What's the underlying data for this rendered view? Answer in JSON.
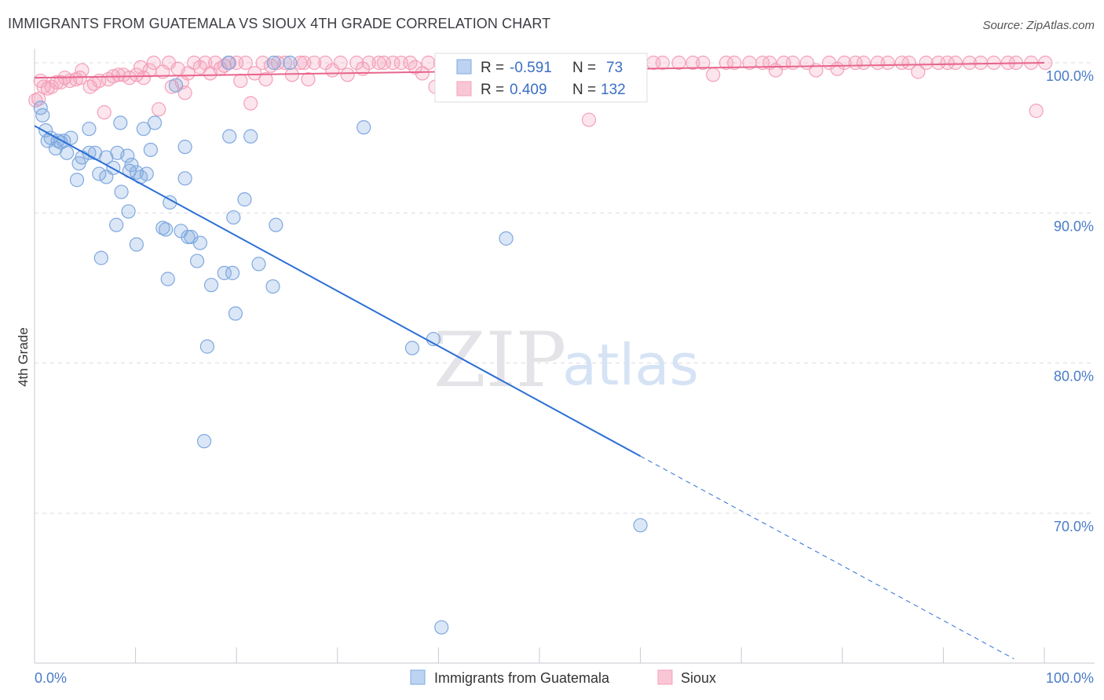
{
  "title": "IMMIGRANTS FROM GUATEMALA VS SIOUX 4TH GRADE CORRELATION CHART",
  "source": "Source: ZipAtlas.com",
  "watermark": {
    "zip": "ZIP",
    "atlas": "atlas"
  },
  "chart_data": {
    "type": "scatter",
    "xlabel": "",
    "ylabel": "4th Grade",
    "xlim": [
      0,
      100
    ],
    "ylim": [
      61,
      101
    ],
    "y_ticks": [
      {
        "v": 100,
        "label": "100.0%"
      },
      {
        "v": 90,
        "label": "90.0%"
      },
      {
        "v": 80,
        "label": "80.0%"
      },
      {
        "v": 70,
        "label": "70.0%"
      }
    ],
    "x_ticks": [
      {
        "v": 0,
        "label": "0.0%"
      },
      {
        "v": 100,
        "label": "100.0%"
      }
    ],
    "grid": true,
    "legend": {
      "placement": "top-center",
      "rows": [
        {
          "r_label": "R =",
          "r_value": "-0.591",
          "n_label": "N =",
          "n_value": "73"
        },
        {
          "r_label": "R =",
          "r_value": "0.409",
          "n_label": "N =",
          "n_value": "132"
        }
      ]
    },
    "series": [
      {
        "name": "Immigrants from Guatemala",
        "color": "#7fa8e0",
        "line_color": "#2b6fd6",
        "trend": {
          "x0": 0,
          "y0": 95.8,
          "x1": 60,
          "y1": 73.8,
          "dash_to_x": 97,
          "dash_to_y": 60.3
        },
        "points": [
          [
            0.6,
            97
          ],
          [
            0.8,
            96.5
          ],
          [
            1.1,
            95.5
          ],
          [
            1.3,
            94.8
          ],
          [
            1.6,
            95
          ],
          [
            2.1,
            94.3
          ],
          [
            2.3,
            94.8
          ],
          [
            2.6,
            94.7
          ],
          [
            2.9,
            94.8
          ],
          [
            3.2,
            94
          ],
          [
            3.6,
            95
          ],
          [
            4.2,
            92.2
          ],
          [
            4.4,
            93.3
          ],
          [
            4.7,
            93.7
          ],
          [
            5.4,
            94
          ],
          [
            5.4,
            95.6
          ],
          [
            6,
            94
          ],
          [
            6.4,
            92.6
          ],
          [
            6.6,
            87
          ],
          [
            7.1,
            93.7
          ],
          [
            7.1,
            92.4
          ],
          [
            7.8,
            93
          ],
          [
            8.1,
            89.2
          ],
          [
            8.2,
            94
          ],
          [
            8.5,
            96
          ],
          [
            8.6,
            91.4
          ],
          [
            9.2,
            93.8
          ],
          [
            9.3,
            90.1
          ],
          [
            9.4,
            92.8
          ],
          [
            9.6,
            93.2
          ],
          [
            10.1,
            92.7
          ],
          [
            10.1,
            87.9
          ],
          [
            10.5,
            92.4
          ],
          [
            10.8,
            95.6
          ],
          [
            11.1,
            92.6
          ],
          [
            11.5,
            94.2
          ],
          [
            11.9,
            96
          ],
          [
            12.7,
            89
          ],
          [
            13,
            88.9
          ],
          [
            13.2,
            85.6
          ],
          [
            13.4,
            90.7
          ],
          [
            14,
            98.5
          ],
          [
            14.5,
            88.8
          ],
          [
            14.9,
            94.4
          ],
          [
            14.9,
            92.3
          ],
          [
            15.2,
            88.4
          ],
          [
            15.5,
            88.4
          ],
          [
            16.1,
            86.8
          ],
          [
            16.4,
            88
          ],
          [
            16.8,
            74.8
          ],
          [
            17.1,
            81.1
          ],
          [
            17.5,
            85.2
          ],
          [
            18.8,
            86
          ],
          [
            19.3,
            95.1
          ],
          [
            19.2,
            100
          ],
          [
            19.6,
            86
          ],
          [
            19.7,
            89.7
          ],
          [
            19.9,
            83.3
          ],
          [
            20.8,
            90.9
          ],
          [
            21.4,
            95.1
          ],
          [
            22.2,
            86.6
          ],
          [
            23.6,
            85.1
          ],
          [
            23.7,
            100
          ],
          [
            23.9,
            89.2
          ],
          [
            25.3,
            100
          ],
          [
            32.6,
            95.7
          ],
          [
            37.4,
            81
          ],
          [
            39.5,
            81.6
          ],
          [
            40.3,
            62.4
          ],
          [
            41.7,
            100
          ],
          [
            44.4,
            100
          ],
          [
            46.7,
            88.3
          ],
          [
            60,
            69.2
          ]
        ]
      },
      {
        "name": "Sioux",
        "color": "#f4a0ba",
        "line_color": "#e8648c",
        "trend": {
          "x0": 0,
          "y0": 99.0,
          "x1": 100,
          "y1": 100.0
        },
        "points": [
          [
            0.1,
            97.5
          ],
          [
            0.4,
            97.6
          ],
          [
            0.6,
            98.8
          ],
          [
            0.9,
            98.4
          ],
          [
            1.3,
            98.3
          ],
          [
            1.7,
            98.4
          ],
          [
            2.2,
            98.7
          ],
          [
            2.6,
            98.7
          ],
          [
            3,
            99
          ],
          [
            3.5,
            98.8
          ],
          [
            4.1,
            98.9
          ],
          [
            4.5,
            99
          ],
          [
            4.7,
            99.5
          ],
          [
            5.5,
            98.4
          ],
          [
            5.9,
            98.6
          ],
          [
            6.4,
            98.8
          ],
          [
            6.9,
            96.7
          ],
          [
            7.3,
            98.9
          ],
          [
            7.8,
            99.1
          ],
          [
            8.3,
            99.2
          ],
          [
            8.8,
            99.2
          ],
          [
            9.4,
            99
          ],
          [
            10.1,
            99.2
          ],
          [
            10.5,
            99.7
          ],
          [
            10.8,
            99
          ],
          [
            11.4,
            99.5
          ],
          [
            11.8,
            100
          ],
          [
            12.3,
            96.9
          ],
          [
            12.7,
            99.4
          ],
          [
            13.3,
            100
          ],
          [
            13.6,
            98.4
          ],
          [
            14.2,
            99.6
          ],
          [
            14.6,
            98.7
          ],
          [
            14.9,
            98
          ],
          [
            15.2,
            99.3
          ],
          [
            15.8,
            100
          ],
          [
            16.4,
            99.7
          ],
          [
            16.9,
            100
          ],
          [
            17.4,
            99.3
          ],
          [
            17.9,
            100
          ],
          [
            18.4,
            99.6
          ],
          [
            18.8,
            99.8
          ],
          [
            19.3,
            100
          ],
          [
            20,
            100
          ],
          [
            20.4,
            98.8
          ],
          [
            20.9,
            100
          ],
          [
            21.4,
            97.3
          ],
          [
            21.8,
            99.3
          ],
          [
            22.6,
            100
          ],
          [
            22.9,
            98.9
          ],
          [
            23.4,
            99.8
          ],
          [
            24.1,
            100
          ],
          [
            24.8,
            100
          ],
          [
            25.5,
            99.2
          ],
          [
            26.3,
            100
          ],
          [
            26.7,
            100
          ],
          [
            27.1,
            98.9
          ],
          [
            27.7,
            100
          ],
          [
            28.8,
            100
          ],
          [
            29.5,
            99.5
          ],
          [
            30.3,
            100
          ],
          [
            31,
            99.2
          ],
          [
            31.9,
            100
          ],
          [
            32.5,
            99.6
          ],
          [
            33.1,
            100
          ],
          [
            34.1,
            100
          ],
          [
            34.6,
            100
          ],
          [
            35.5,
            100
          ],
          [
            36.3,
            100
          ],
          [
            37.2,
            100
          ],
          [
            37.7,
            99.7
          ],
          [
            38.4,
            99.3
          ],
          [
            39,
            100
          ],
          [
            39.7,
            98.4
          ],
          [
            40.2,
            100
          ],
          [
            41.1,
            100
          ],
          [
            41.8,
            100
          ],
          [
            42.7,
            100
          ],
          [
            43.4,
            100
          ],
          [
            44,
            99.3
          ],
          [
            44.7,
            100
          ],
          [
            45.4,
            100
          ],
          [
            46,
            100
          ],
          [
            46.5,
            100
          ],
          [
            47.5,
            100
          ],
          [
            48.4,
            100
          ],
          [
            50,
            100
          ],
          [
            50.5,
            100
          ],
          [
            51,
            100
          ],
          [
            51.7,
            100
          ],
          [
            54.9,
            96.2
          ],
          [
            56.1,
            100
          ],
          [
            58,
            100
          ],
          [
            60,
            100
          ],
          [
            61.3,
            100
          ],
          [
            62.2,
            100
          ],
          [
            63.8,
            100
          ],
          [
            65.2,
            100
          ],
          [
            66.2,
            100
          ],
          [
            67.2,
            99.2
          ],
          [
            68.5,
            100
          ],
          [
            69.3,
            100
          ],
          [
            70.8,
            100
          ],
          [
            72.1,
            100
          ],
          [
            72.8,
            100
          ],
          [
            73.4,
            99.5
          ],
          [
            74.2,
            100
          ],
          [
            75.1,
            100
          ],
          [
            76.5,
            100
          ],
          [
            77.4,
            99.5
          ],
          [
            78.7,
            100
          ],
          [
            79.5,
            99.6
          ],
          [
            80.2,
            100
          ],
          [
            81.3,
            100
          ],
          [
            82.1,
            100
          ],
          [
            83.5,
            100
          ],
          [
            84.5,
            100
          ],
          [
            85.9,
            100
          ],
          [
            86.6,
            100
          ],
          [
            87.5,
            99.4
          ],
          [
            88.3,
            100
          ],
          [
            89.5,
            100
          ],
          [
            90.4,
            100
          ],
          [
            91.2,
            100
          ],
          [
            92.6,
            100
          ],
          [
            93.7,
            100
          ],
          [
            95,
            100
          ],
          [
            96.4,
            100
          ],
          [
            97.2,
            100
          ],
          [
            98.7,
            100
          ],
          [
            99.2,
            96.8
          ],
          [
            100.1,
            100
          ]
        ]
      }
    ]
  }
}
